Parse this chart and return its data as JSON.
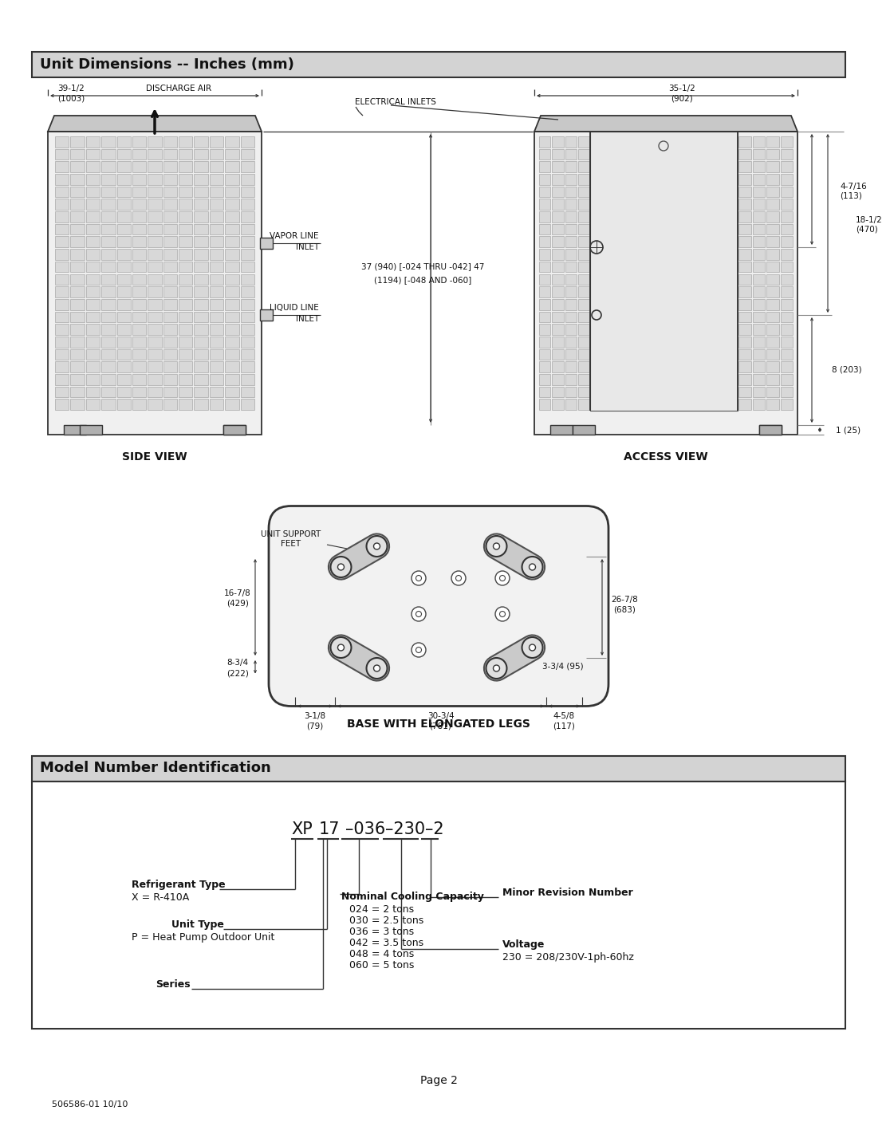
{
  "title_section1": "Unit Dimensions -- Inches (mm)",
  "title_section2": "Model Number Identification",
  "bg_color": "#ffffff",
  "section_header_color": "#d3d3d3",
  "section_border_color": "#333333",
  "page_label": "Page 2",
  "footer_label": "506586-01 10/10",
  "side_view_label": "SIDE VIEW",
  "access_view_label": "ACCESS VIEW",
  "base_label": "BASE WITH ELONGATED LEGS",
  "discharge_dim": "39-1/2",
  "discharge_dim2": "(1003)",
  "discharge_label": "DISCHARGE AIR",
  "elec_label": "ELECTRICAL INLETS",
  "width_access": "35-1/2",
  "width_access2": "(902)",
  "height_dim1": "37 (940) [-024 THRU -042] 47",
  "height_dim2": "(1194) [-048 AND -060]",
  "vapor_label": "VAPOR LINE\nINLET",
  "liquid_label": "LIQUID LINE\nINLET",
  "d_4_7_16a": "4-7/16",
  "d_4_7_16b": "(113)",
  "d_18_1_2a": "18-1/2",
  "d_18_1_2b": "(470)",
  "d_8": "8 (203)",
  "d_1": "1 (25)",
  "d_16_7_8a": "16-7/8",
  "d_16_7_8b": "(429)",
  "d_8_3_4a": "8-3/4",
  "d_8_3_4b": "(222)",
  "d_26_7_8a": "26-7/8",
  "d_26_7_8b": "(683)",
  "d_3_3_4": "3-3/4 (95)",
  "d_3_1_8a": "3-1/8",
  "d_3_1_8b": "(79)",
  "d_30_3_4a": "30-3/4",
  "d_30_3_4b": "(781)",
  "d_4_5_8a": "4-5/8",
  "d_4_5_8b": "(117)",
  "unit_support": "UNIT SUPPORT\nFEET",
  "refrig_label": "Refrigerant Type",
  "refrig_val": "X = R-410A",
  "unit_type_label": "Unit Type",
  "unit_type_val": "P = Heat Pump Outdoor Unit",
  "series_label": "Series",
  "nominal_label": "Nominal Cooling Capacity",
  "nominal_vals": [
    "024 = 2 tons",
    "030 = 2.5 tons",
    "036 = 3 tons",
    "042 = 3.5 tons",
    "048 = 4 tons",
    "060 = 5 tons"
  ],
  "voltage_label": "Voltage",
  "voltage_val": "230 = 208/230V-1ph-60hz",
  "minor_rev_label": "Minor Revision Number"
}
